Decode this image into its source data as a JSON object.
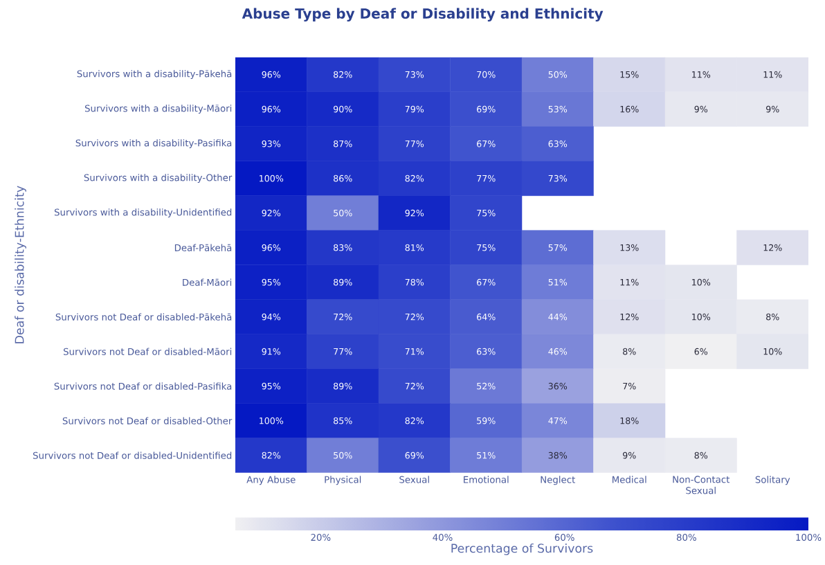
{
  "chart_data": {
    "type": "heatmap",
    "title": "Abuse Type by Deaf or Disability and Ethnicity",
    "ylabel": "Deaf or disability-Ethnicity",
    "clabel": "Percentage of Survivors",
    "categories": [
      "Any Abuse",
      "Physical",
      "Sexual",
      "Emotional",
      "Neglect",
      "Medical",
      "Non-Contact Sexual",
      "Solitary"
    ],
    "y_categories": [
      "Survivors with a disability-Pākehā",
      "Survivors with a disability-Māori",
      "Survivors with a disability-Pasifika",
      "Survivors with a disability-Other",
      "Survivors with a disability-Unidentified",
      "Deaf-Pākehā",
      "Deaf-Māori",
      "Survivors not Deaf or disabled-Pākehā",
      "Survivors not Deaf or disabled-Māori",
      "Survivors not Deaf or disabled-Pasifika",
      "Survivors not Deaf or disabled-Other",
      "Survivors not Deaf or disabled-Unidentified"
    ],
    "cells": [
      [
        96,
        82,
        73,
        70,
        50,
        15,
        11,
        11
      ],
      [
        96,
        90,
        79,
        69,
        53,
        16,
        9,
        9
      ],
      [
        93,
        87,
        77,
        67,
        63,
        null,
        null,
        null
      ],
      [
        100,
        86,
        82,
        77,
        73,
        null,
        null,
        null
      ],
      [
        92,
        50,
        92,
        75,
        null,
        null,
        null,
        null
      ],
      [
        96,
        83,
        81,
        75,
        57,
        13,
        null,
        12
      ],
      [
        95,
        89,
        78,
        67,
        51,
        11,
        10,
        null
      ],
      [
        94,
        72,
        72,
        64,
        44,
        12,
        10,
        8
      ],
      [
        91,
        77,
        71,
        63,
        46,
        8,
        6,
        10
      ],
      [
        95,
        89,
        72,
        52,
        36,
        7,
        null,
        null
      ],
      [
        100,
        85,
        82,
        59,
        47,
        18,
        null,
        null
      ],
      [
        82,
        50,
        69,
        51,
        38,
        9,
        8,
        null
      ]
    ],
    "cell_labels": [
      [
        "96%",
        "82%",
        "73%",
        "70%",
        "50%",
        "15%",
        "11%",
        "11%"
      ],
      [
        "96%",
        "90%",
        "79%",
        "69%",
        "53%",
        "16%",
        "9%",
        "9%"
      ],
      [
        "93%",
        "87%",
        "77%",
        "67%",
        "63%",
        null,
        null,
        null
      ],
      [
        "100%",
        "86%",
        "82%",
        "77%",
        "73%",
        null,
        null,
        null
      ],
      [
        "92%",
        "50%",
        "92%",
        "75%",
        null,
        null,
        null,
        null
      ],
      [
        "96%",
        "83%",
        "81%",
        "75%",
        "57%",
        "13%",
        null,
        "12%"
      ],
      [
        "95%",
        "89%",
        "78%",
        "67%",
        "51%",
        "11%",
        "10%",
        null
      ],
      [
        "94%",
        "72%",
        "72%",
        "64%",
        "44%",
        "12%",
        "10%",
        "8%"
      ],
      [
        "91%",
        "77%",
        "71%",
        "63%",
        "46%",
        "8%",
        "6%",
        "10%"
      ],
      [
        "95%",
        "89%",
        "72%",
        "52%",
        "36%",
        "7%",
        null,
        null
      ],
      [
        "100%",
        "85%",
        "82%",
        "59%",
        "47%",
        "18%",
        null,
        null
      ],
      [
        "82%",
        "50%",
        "69%",
        "51%",
        "38%",
        "9%",
        "8%",
        null
      ]
    ],
    "clim": [
      6,
      100
    ],
    "cticks": [
      {
        "value": 20,
        "label": "20%"
      },
      {
        "value": 40,
        "label": "40%"
      },
      {
        "value": 60,
        "label": "60%"
      },
      {
        "value": 80,
        "label": "80%"
      },
      {
        "value": 100,
        "label": "100%"
      }
    ]
  }
}
